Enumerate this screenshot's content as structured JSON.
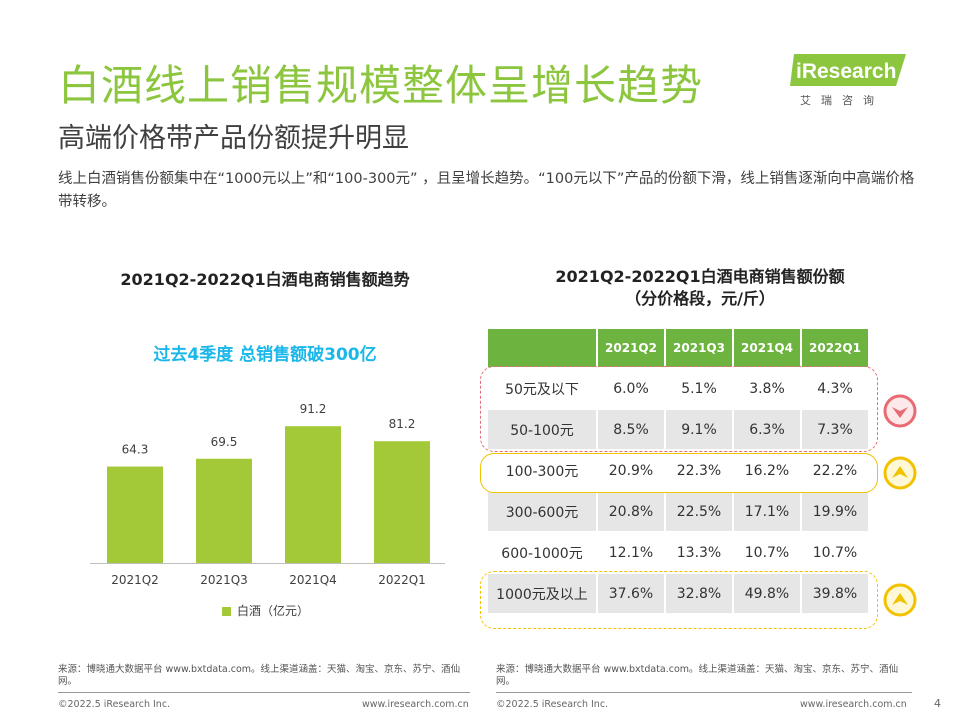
{
  "header": {
    "title": "白酒线上销售规模整体呈增长趋势",
    "subtitle": "高端价格带产品份额提升明显",
    "description": "线上白酒销售份额集中在“1000元以上”和“100-300元” ，且呈增长趋势。“100元以下”产品的份额下滑，线上销售逐渐向中高端价格带转移。"
  },
  "logo": {
    "name": "iResearch",
    "chinese": "艾瑞咨询",
    "color": "#8cc63f"
  },
  "left_chart": {
    "title": "2021Q2-2022Q1白酒电商销售额趋势",
    "annotation": "过去4季度 总销售额破300亿",
    "legend": "白酒（亿元）"
  },
  "right_table": {
    "title_line1": "2021Q2-2022Q1白酒电商销售额份额",
    "title_line2": "（分价格段，元/斤）",
    "columns": [
      "2021Q2",
      "2021Q3",
      "2021Q4",
      "2022Q1"
    ],
    "rows": [
      {
        "label": "50元及以下",
        "values": [
          "6.0%",
          "5.1%",
          "3.8%",
          "4.3%"
        ]
      },
      {
        "label": "50-100元",
        "values": [
          "8.5%",
          "9.1%",
          "6.3%",
          "7.3%"
        ]
      },
      {
        "label": "100-300元",
        "values": [
          "20.9%",
          "22.3%",
          "16.2%",
          "22.2%"
        ]
      },
      {
        "label": "300-600元",
        "values": [
          "20.8%",
          "22.5%",
          "17.1%",
          "19.9%"
        ]
      },
      {
        "label": "600-1000元",
        "values": [
          "12.1%",
          "13.3%",
          "10.7%",
          "10.7%"
        ]
      },
      {
        "label": "1000元及以上",
        "values": [
          "37.6%",
          "32.8%",
          "49.8%",
          "39.8%"
        ]
      }
    ],
    "header_color": "#6db33f",
    "trend_icons": [
      "arrow-down-icon",
      "arrow-up-icon",
      "arrow-up-icon"
    ]
  },
  "chart_data": [
    {
      "type": "bar",
      "categories": [
        "2021Q2",
        "2021Q3",
        "2021Q4",
        "2022Q1"
      ],
      "series": [
        {
          "name": "白酒（亿元）",
          "values": [
            64.3,
            69.5,
            91.2,
            81.2
          ]
        }
      ],
      "title": "2021Q2-2022Q1白酒电商销售额趋势",
      "annotation": "过去4季度 总销售额破300亿",
      "legend_position": "bottom",
      "grid": false,
      "ylim": [
        0,
        100
      ],
      "color": "#a3c939"
    },
    {
      "type": "table",
      "title": "2021Q2-2022Q1白酒电商销售额份额（分价格段，元/斤）",
      "columns": [
        "2021Q2",
        "2021Q3",
        "2021Q4",
        "2022Q1"
      ],
      "rows": [
        "50元及以下",
        "50-100元",
        "100-300元",
        "300-600元",
        "600-1000元",
        "1000元及以上"
      ],
      "values": [
        [
          6.0,
          5.1,
          3.8,
          4.3
        ],
        [
          8.5,
          9.1,
          6.3,
          7.3
        ],
        [
          20.9,
          22.3,
          16.2,
          22.2
        ],
        [
          20.8,
          22.5,
          17.1,
          19.9
        ],
        [
          12.1,
          13.3,
          10.7,
          10.7
        ],
        [
          37.6,
          32.8,
          49.8,
          39.8
        ]
      ]
    }
  ],
  "footer": {
    "source_left": "来源：博晓通大数据平台 www.bxtdata.com。线上渠道涵盖：天猫、淘宝、京东、苏宁、酒仙网。",
    "source_right": "来源：博晓通大数据平台 www.bxtdata.com。线上渠道涵盖：天猫、淘宝、京东、苏宁、酒仙网。",
    "copyright": "©2022.5 iResearch Inc.",
    "website": "www.iresearch.com.cn",
    "page_number": "4"
  }
}
